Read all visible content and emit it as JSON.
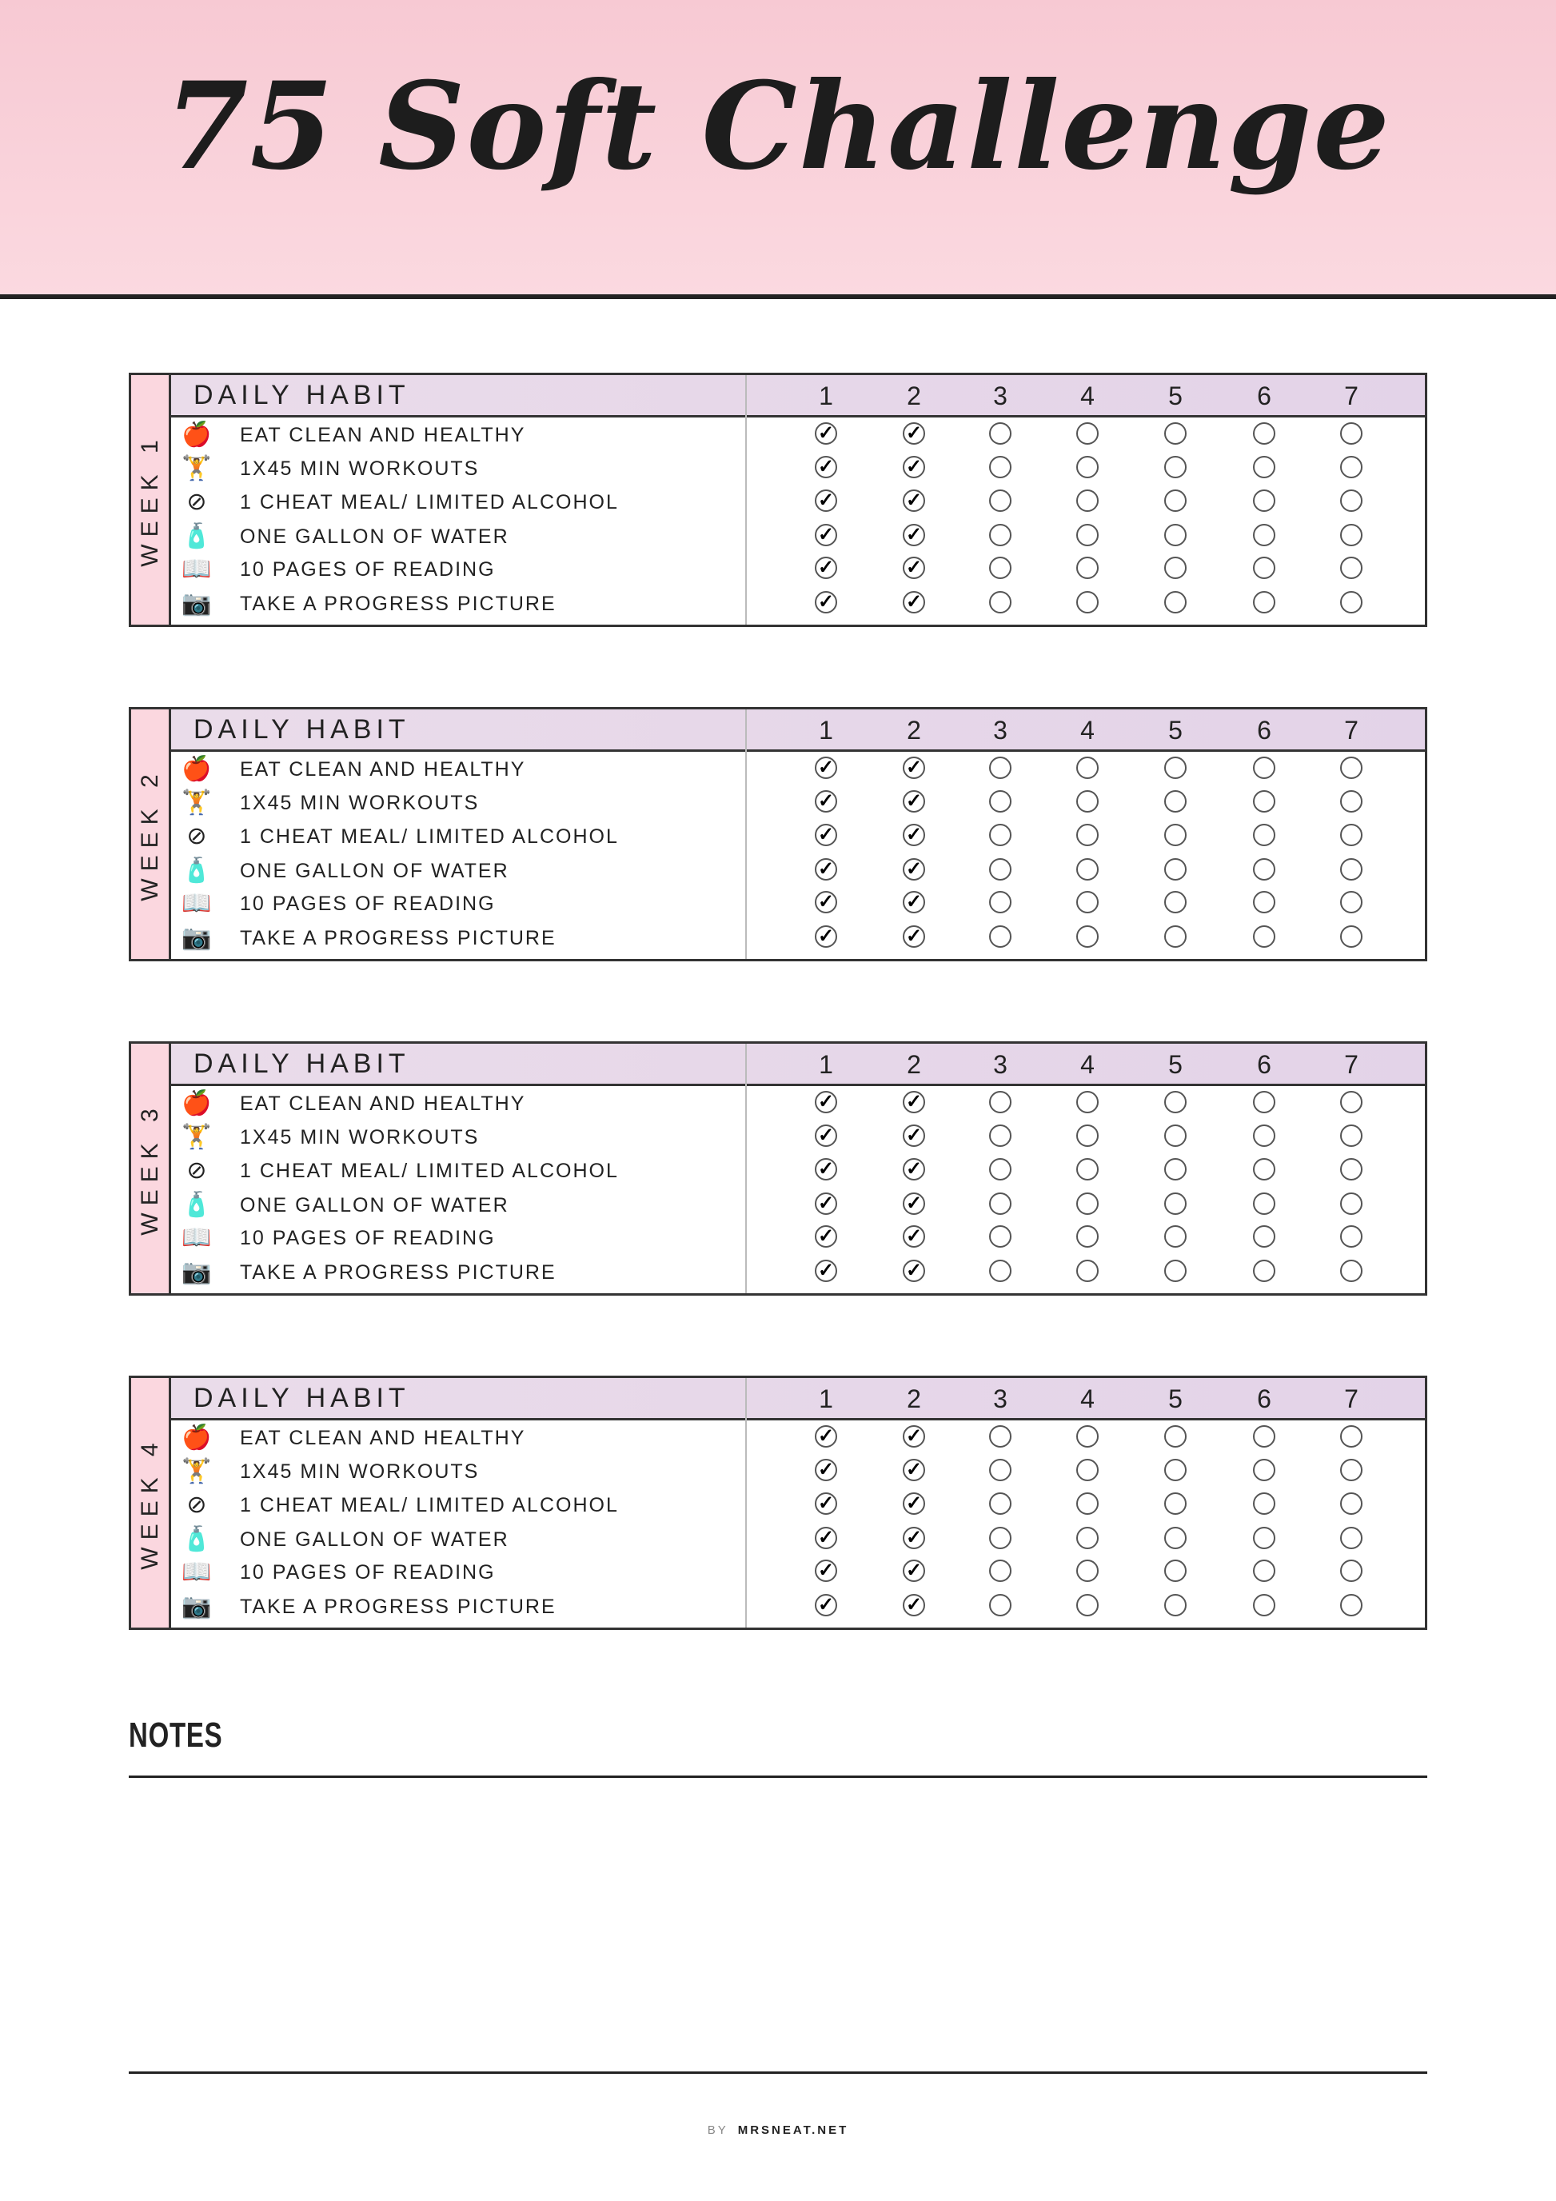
{
  "title": "75 Soft Challenge",
  "header_label": "DAILY HABIT",
  "days": [
    "1",
    "2",
    "3",
    "4",
    "5",
    "6",
    "7"
  ],
  "habits": [
    {
      "label": "EAT CLEAN AND HEALTHY",
      "icon": "apple-icon",
      "glyph": "🍎"
    },
    {
      "label": "1X45 MIN WORKOUTS",
      "icon": "dumbbell-icon",
      "glyph": "🏋"
    },
    {
      "label": "1 CHEAT MEAL/ LIMITED ALCOHOL",
      "icon": "no-alcohol-icon",
      "glyph": "⊘"
    },
    {
      "label": "ONE GALLON OF WATER",
      "icon": "water-bottle-icon",
      "glyph": "🧴"
    },
    {
      "label": "10 PAGES OF READING",
      "icon": "open-book-icon",
      "glyph": "📖"
    },
    {
      "label": "TAKE A PROGRESS PICTURE",
      "icon": "camera-icon",
      "glyph": "📷"
    }
  ],
  "weeks": [
    {
      "label": "WEEK 1",
      "checked": [
        [
          true,
          true,
          false,
          false,
          false,
          false,
          false
        ],
        [
          true,
          true,
          false,
          false,
          false,
          false,
          false
        ],
        [
          true,
          true,
          false,
          false,
          false,
          false,
          false
        ],
        [
          true,
          true,
          false,
          false,
          false,
          false,
          false
        ],
        [
          true,
          true,
          false,
          false,
          false,
          false,
          false
        ],
        [
          true,
          true,
          false,
          false,
          false,
          false,
          false
        ]
      ]
    },
    {
      "label": "WEEK 2",
      "checked": [
        [
          true,
          true,
          false,
          false,
          false,
          false,
          false
        ],
        [
          true,
          true,
          false,
          false,
          false,
          false,
          false
        ],
        [
          true,
          true,
          false,
          false,
          false,
          false,
          false
        ],
        [
          true,
          true,
          false,
          false,
          false,
          false,
          false
        ],
        [
          true,
          true,
          false,
          false,
          false,
          false,
          false
        ],
        [
          true,
          true,
          false,
          false,
          false,
          false,
          false
        ]
      ]
    },
    {
      "label": "WEEK 3",
      "checked": [
        [
          true,
          true,
          false,
          false,
          false,
          false,
          false
        ],
        [
          true,
          true,
          false,
          false,
          false,
          false,
          false
        ],
        [
          true,
          true,
          false,
          false,
          false,
          false,
          false
        ],
        [
          true,
          true,
          false,
          false,
          false,
          false,
          false
        ],
        [
          true,
          true,
          false,
          false,
          false,
          false,
          false
        ],
        [
          true,
          true,
          false,
          false,
          false,
          false,
          false
        ]
      ]
    },
    {
      "label": "WEEK 4",
      "checked": [
        [
          true,
          true,
          false,
          false,
          false,
          false,
          false
        ],
        [
          true,
          true,
          false,
          false,
          false,
          false,
          false
        ],
        [
          true,
          true,
          false,
          false,
          false,
          false,
          false
        ],
        [
          true,
          true,
          false,
          false,
          false,
          false,
          false
        ],
        [
          true,
          true,
          false,
          false,
          false,
          false,
          false
        ],
        [
          true,
          true,
          false,
          false,
          false,
          false,
          false
        ]
      ]
    }
  ],
  "check_glyph": "✓",
  "notes_label": "NOTES",
  "footer": {
    "by": "BY",
    "site": "MRSNEAT.NET"
  },
  "colors": {
    "banner": "#f9d0d9",
    "week_tab": "#fbd7df",
    "header_row": "#e6d6e9",
    "ink": "#222222"
  }
}
